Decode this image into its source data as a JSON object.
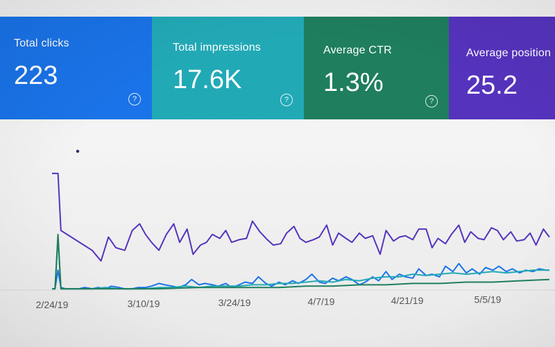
{
  "cards": [
    {
      "id": "clicks",
      "label": "Total clicks",
      "value": "223",
      "color": "#1a73e8"
    },
    {
      "id": "impressions",
      "label": "Total impressions",
      "value": "17.6K",
      "color": "#22a9b6"
    },
    {
      "id": "ctr",
      "label": "Average CTR",
      "value": "1.3%",
      "color": "#1e7e5e"
    },
    {
      "id": "position",
      "label": "Average position",
      "value": "25.2",
      "color": "#5533bd"
    }
  ],
  "help_icon": "help-circle-icon",
  "help_glyph": "?",
  "chart_data": {
    "type": "line",
    "x_ticks": [
      "2/24/19",
      "3/10/19",
      "3/24/19",
      "4/7/19",
      "4/21/19",
      "5/5/19"
    ],
    "series": [
      {
        "color": "#5533bd",
        "values": [
          [
            0,
            88
          ],
          [
            4,
            88
          ],
          [
            6,
            45
          ],
          [
            27,
            30
          ],
          [
            33,
            22
          ],
          [
            38,
            40
          ],
          [
            43,
            32
          ],
          [
            49,
            30
          ],
          [
            54,
            45
          ],
          [
            59,
            50
          ],
          [
            63,
            42
          ],
          [
            67,
            36
          ],
          [
            72,
            30
          ],
          [
            77,
            42
          ],
          [
            82,
            50
          ],
          [
            86,
            36
          ],
          [
            91,
            46
          ],
          [
            95,
            27
          ],
          [
            100,
            34
          ],
          [
            104,
            36
          ],
          [
            108,
            42
          ],
          [
            113,
            39
          ],
          [
            117,
            45
          ],
          [
            121,
            36
          ],
          [
            126,
            38
          ],
          [
            131,
            39
          ],
          [
            135,
            52
          ],
          [
            140,
            44
          ],
          [
            145,
            38
          ],
          [
            149,
            34
          ],
          [
            154,
            35
          ],
          [
            158,
            43
          ],
          [
            163,
            48
          ],
          [
            167,
            39
          ],
          [
            171,
            36
          ],
          [
            176,
            38
          ],
          [
            180,
            40
          ],
          [
            185,
            49
          ],
          [
            189,
            34
          ],
          [
            193,
            43
          ],
          [
            198,
            39
          ],
          [
            202,
            36
          ],
          [
            207,
            43
          ],
          [
            211,
            39
          ],
          [
            216,
            41
          ],
          [
            221,
            27
          ],
          [
            225,
            45
          ],
          [
            230,
            37
          ],
          [
            234,
            40
          ],
          [
            238,
            41
          ],
          [
            243,
            38
          ],
          [
            247,
            46
          ],
          [
            252,
            46
          ],
          [
            256,
            32
          ],
          [
            260,
            39
          ],
          [
            265,
            35
          ],
          [
            269,
            42
          ],
          [
            274,
            49
          ],
          [
            278,
            36
          ],
          [
            282,
            44
          ],
          [
            287,
            39
          ],
          [
            291,
            38
          ],
          [
            296,
            47
          ],
          [
            300,
            45
          ],
          [
            304,
            38
          ],
          [
            309,
            44
          ],
          [
            313,
            37
          ],
          [
            318,
            38
          ],
          [
            322,
            43
          ],
          [
            326,
            34
          ],
          [
            331,
            46
          ],
          [
            335,
            40
          ]
        ]
      },
      {
        "color": "#1a73e8",
        "values": [
          [
            0,
            1
          ],
          [
            2,
            1
          ],
          [
            4,
            15
          ],
          [
            6,
            2
          ],
          [
            9,
            1
          ],
          [
            13,
            1
          ],
          [
            18,
            1
          ],
          [
            22,
            2
          ],
          [
            27,
            1
          ],
          [
            31,
            2
          ],
          [
            36,
            1
          ],
          [
            40,
            3
          ],
          [
            45,
            2
          ],
          [
            49,
            1
          ],
          [
            54,
            1
          ],
          [
            58,
            2
          ],
          [
            63,
            2
          ],
          [
            67,
            3
          ],
          [
            72,
            5
          ],
          [
            76,
            4
          ],
          [
            81,
            3
          ],
          [
            85,
            2
          ],
          [
            90,
            4
          ],
          [
            94,
            8
          ],
          [
            99,
            4
          ],
          [
            103,
            5
          ],
          [
            108,
            4
          ],
          [
            112,
            3
          ],
          [
            117,
            5
          ],
          [
            121,
            2
          ],
          [
            126,
            4
          ],
          [
            130,
            6
          ],
          [
            135,
            5
          ],
          [
            139,
            10
          ],
          [
            144,
            5
          ],
          [
            148,
            3
          ],
          [
            153,
            6
          ],
          [
            157,
            4
          ],
          [
            162,
            7
          ],
          [
            166,
            5
          ],
          [
            171,
            8
          ],
          [
            175,
            12
          ],
          [
            180,
            6
          ],
          [
            184,
            5
          ],
          [
            189,
            9
          ],
          [
            193,
            7
          ],
          [
            198,
            10
          ],
          [
            202,
            8
          ],
          [
            207,
            4
          ],
          [
            211,
            6
          ],
          [
            216,
            10
          ],
          [
            220,
            7
          ],
          [
            225,
            14
          ],
          [
            229,
            8
          ],
          [
            234,
            12
          ],
          [
            238,
            10
          ],
          [
            243,
            9
          ],
          [
            247,
            16
          ],
          [
            252,
            11
          ],
          [
            256,
            12
          ],
          [
            261,
            10
          ],
          [
            265,
            18
          ],
          [
            270,
            14
          ],
          [
            274,
            20
          ],
          [
            279,
            13
          ],
          [
            283,
            16
          ],
          [
            288,
            12
          ],
          [
            292,
            17
          ],
          [
            297,
            15
          ],
          [
            301,
            18
          ],
          [
            306,
            14
          ],
          [
            310,
            16
          ],
          [
            315,
            13
          ],
          [
            319,
            15
          ],
          [
            324,
            14
          ],
          [
            328,
            16
          ],
          [
            333,
            15
          ],
          [
            335,
            15
          ]
        ]
      },
      {
        "color": "#22a9b6",
        "values": [
          [
            0,
            1
          ],
          [
            2,
            1
          ],
          [
            4,
            40
          ],
          [
            6,
            1
          ],
          [
            11,
            1
          ],
          [
            18,
            1
          ],
          [
            27,
            1
          ],
          [
            36,
            2
          ],
          [
            45,
            1
          ],
          [
            54,
            1
          ],
          [
            63,
            1
          ],
          [
            72,
            2
          ],
          [
            81,
            2
          ],
          [
            90,
            3
          ],
          [
            99,
            2
          ],
          [
            108,
            3
          ],
          [
            117,
            3
          ],
          [
            126,
            3
          ],
          [
            135,
            4
          ],
          [
            144,
            4
          ],
          [
            153,
            5
          ],
          [
            162,
            5
          ],
          [
            171,
            6
          ],
          [
            180,
            7
          ],
          [
            189,
            6
          ],
          [
            198,
            8
          ],
          [
            207,
            7
          ],
          [
            216,
            9
          ],
          [
            225,
            10
          ],
          [
            234,
            10
          ],
          [
            243,
            12
          ],
          [
            252,
            11
          ],
          [
            261,
            12
          ],
          [
            270,
            13
          ],
          [
            279,
            12
          ],
          [
            288,
            13
          ],
          [
            297,
            14
          ],
          [
            306,
            13
          ],
          [
            315,
            14
          ],
          [
            324,
            15
          ],
          [
            335,
            15
          ]
        ]
      },
      {
        "color": "#1e7e5e",
        "values": [
          [
            0,
            1
          ],
          [
            2,
            1
          ],
          [
            4,
            42
          ],
          [
            6,
            1
          ],
          [
            18,
            1
          ],
          [
            45,
            1
          ],
          [
            72,
            1
          ],
          [
            99,
            2
          ],
          [
            126,
            2
          ],
          [
            153,
            2
          ],
          [
            171,
            3
          ],
          [
            189,
            3
          ],
          [
            207,
            4
          ],
          [
            225,
            4
          ],
          [
            243,
            5
          ],
          [
            261,
            5
          ],
          [
            279,
            6
          ],
          [
            297,
            6
          ],
          [
            315,
            7
          ],
          [
            335,
            8
          ]
        ]
      }
    ]
  }
}
